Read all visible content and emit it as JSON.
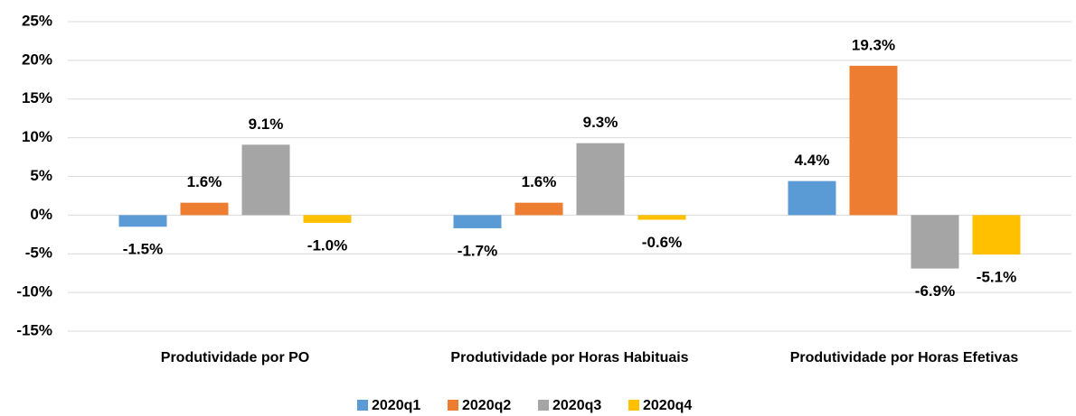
{
  "chart_data": {
    "type": "bar",
    "categories": [
      "Produtividade por PO",
      "Produtividade por Horas Habituais",
      "Produtividade por Horas Efetivas"
    ],
    "series": [
      {
        "name": "2020q1",
        "color": "#5b9bd5",
        "values": [
          -1.5,
          -1.7,
          4.4
        ],
        "value_labels": [
          "-1.5%",
          "-1.7%",
          "4.4%"
        ]
      },
      {
        "name": "2020q2",
        "color": "#ed7d31",
        "values": [
          1.6,
          1.6,
          19.3
        ],
        "value_labels": [
          "1.6%",
          "1.6%",
          "19.3%"
        ]
      },
      {
        "name": "2020q3",
        "color": "#a5a5a5",
        "values": [
          9.1,
          9.3,
          -6.9
        ],
        "value_labels": [
          "9.1%",
          "9.3%",
          "-6.9%"
        ]
      },
      {
        "name": "2020q4",
        "color": "#ffc000",
        "values": [
          -1.0,
          -0.6,
          -5.1
        ],
        "value_labels": [
          "-1.0%",
          "-0.6%",
          "-5.1%"
        ]
      }
    ],
    "ylim": [
      -15,
      25
    ],
    "yticks": [
      {
        "value": -15,
        "label": "-15%"
      },
      {
        "value": -10,
        "label": "-10%"
      },
      {
        "value": -5,
        "label": "-5%"
      },
      {
        "value": 0,
        "label": "0%"
      },
      {
        "value": 5,
        "label": "5%"
      },
      {
        "value": 10,
        "label": "10%"
      },
      {
        "value": 15,
        "label": "15%"
      },
      {
        "value": 20,
        "label": "20%"
      },
      {
        "value": 25,
        "label": "25%"
      }
    ],
    "grid": true,
    "legend": "bottom"
  }
}
